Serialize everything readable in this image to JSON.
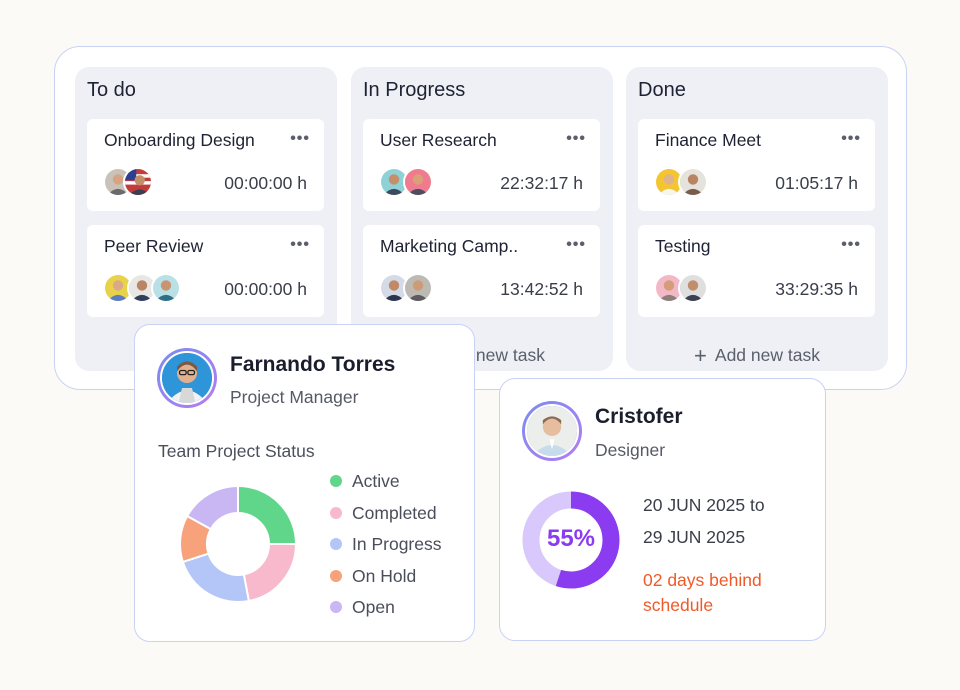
{
  "board": {
    "columns": [
      {
        "title": "To do",
        "cards": [
          {
            "title": "Onboarding Design",
            "time": "00:00:00 h"
          },
          {
            "title": "Peer Review",
            "time": "00:00:00 h"
          }
        ]
      },
      {
        "title": "In Progress",
        "cards": [
          {
            "title": "User Research",
            "time": "22:32:17 h"
          },
          {
            "title": "Marketing Camp..",
            "time": "13:42:52 h"
          }
        ],
        "add_label": "Add new task"
      },
      {
        "title": "Done",
        "cards": [
          {
            "title": "Finance Meet",
            "time": "01:05:17 h"
          },
          {
            "title": "Testing",
            "time": "33:29:35 h"
          }
        ],
        "add_label": "Add new task"
      }
    ],
    "more_icon": "ellipsis-icon",
    "add_icon": "plus-icon"
  },
  "profile": {
    "name": "Farnando Torres",
    "role": "Project Manager",
    "status_title": "Team Project Status"
  },
  "chart_data": {
    "type": "pie",
    "categories": [
      "Active",
      "Completed",
      "In Progress",
      "On Hold",
      "Open"
    ],
    "values": [
      25,
      22,
      23,
      13,
      17
    ],
    "colors": [
      "#5fd68a",
      "#f9b9cd",
      "#b4c6f7",
      "#f7a27a",
      "#c9b7f3"
    ]
  },
  "designer": {
    "name": "Cristofer",
    "role": "Designer",
    "progress_label": "55%",
    "progress_value": 55,
    "date_from": "20 JUN 2025 to",
    "date_to": "29 JUN 2025",
    "behind": "02 days behind schedule"
  },
  "colors": {
    "accent_purple": "#8b3cf0",
    "ring_track": "#d9c8fb",
    "warning": "#f05a28",
    "border": "#c9d2f3"
  }
}
